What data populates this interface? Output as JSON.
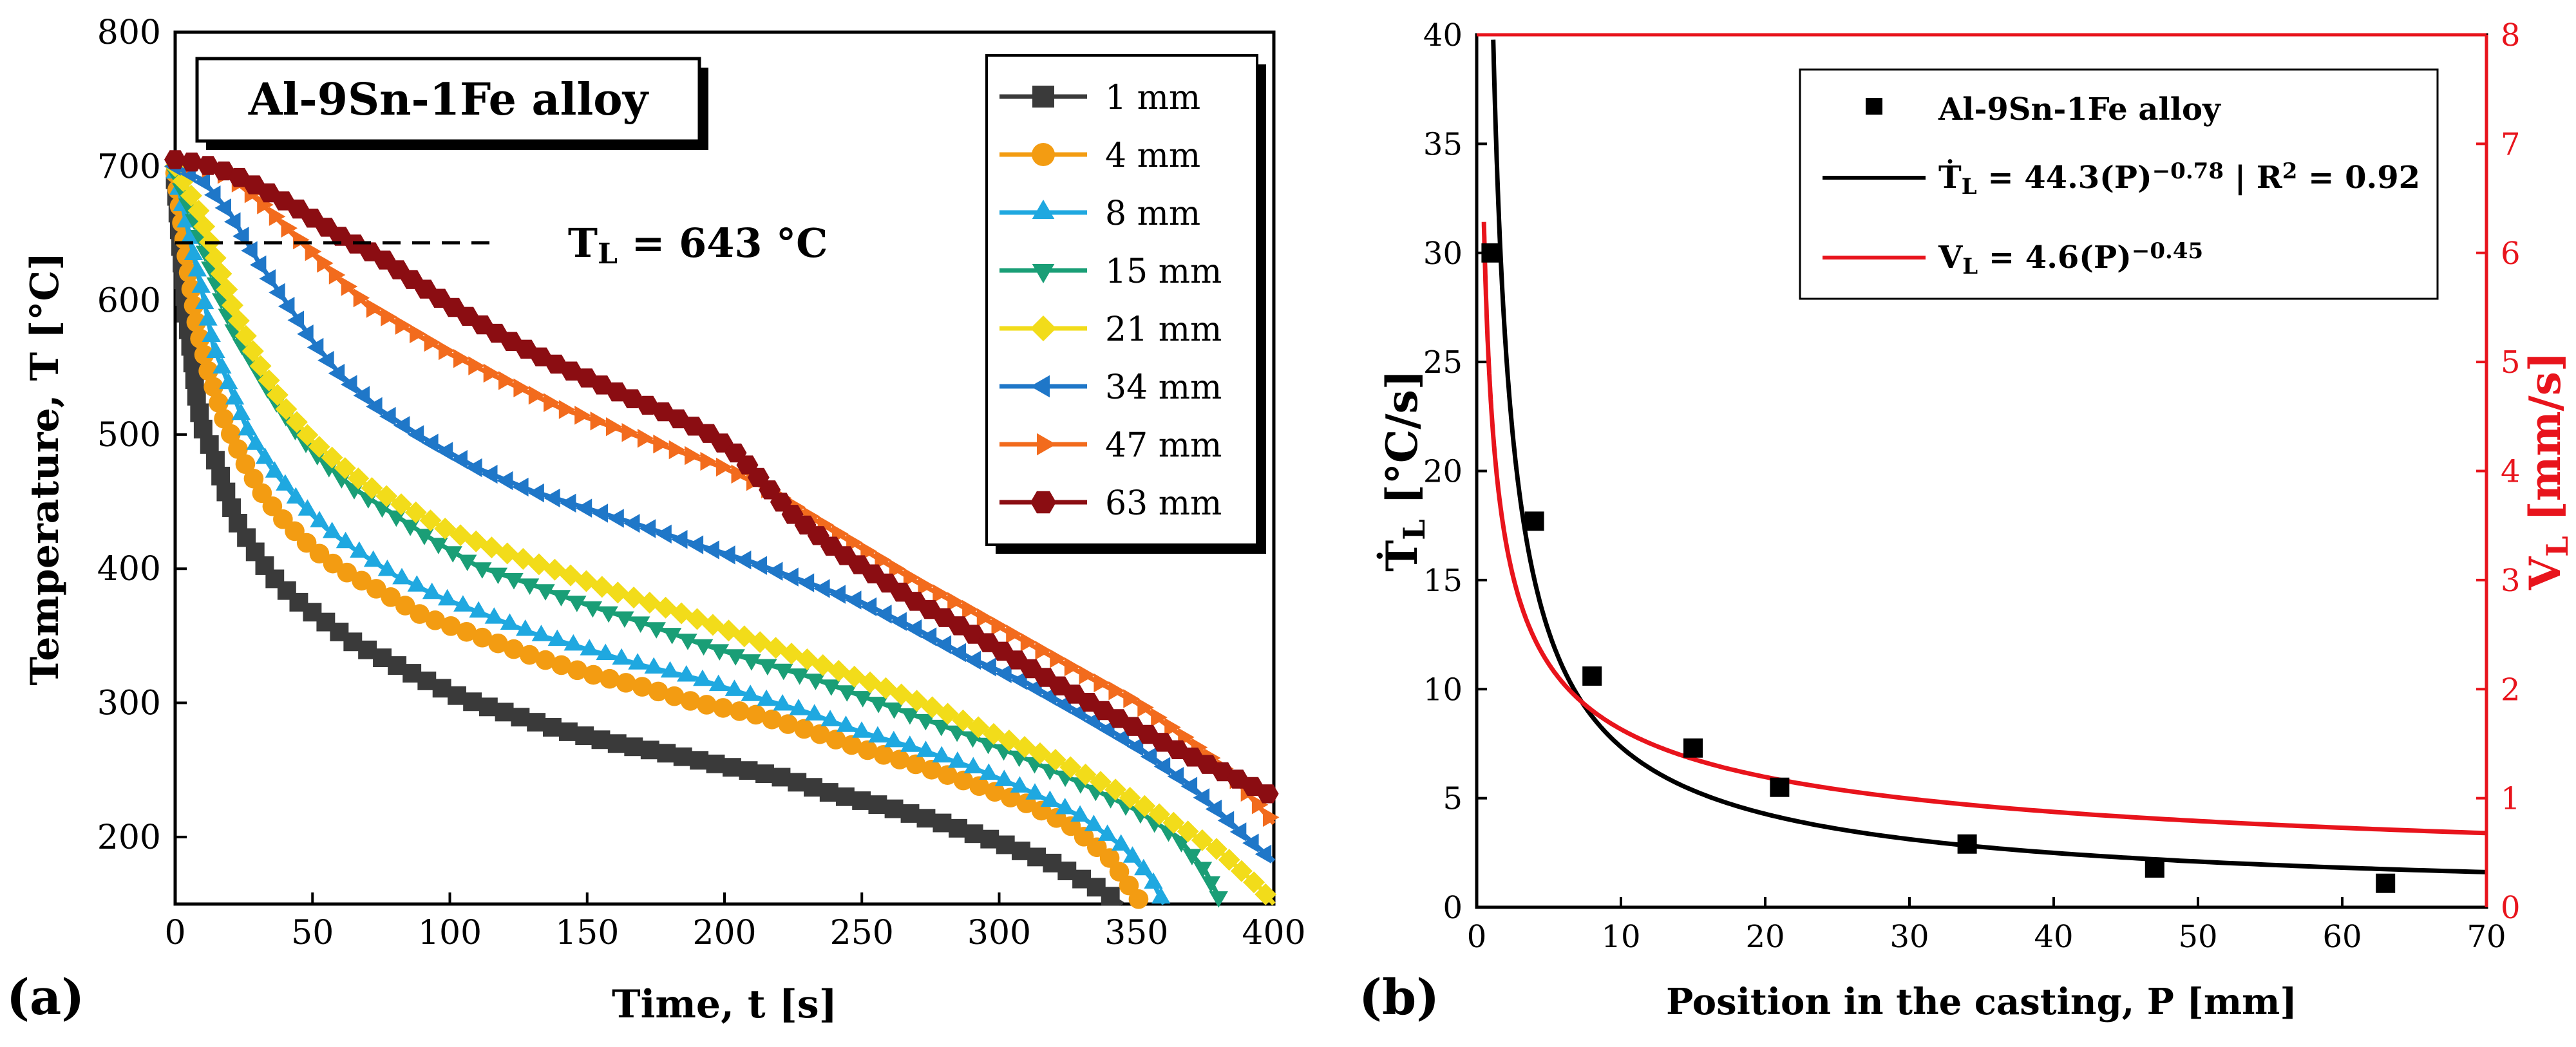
{
  "panel_a": {
    "label": "(a)",
    "chart_data": {
      "type": "line",
      "title": "Al-9Sn-1Fe alloy",
      "xlabel": "Time, t [s]",
      "ylabel": "Temperature, T [°C]",
      "xlim": [
        0,
        400
      ],
      "ylim": [
        150,
        800
      ],
      "xticks": [
        0,
        50,
        100,
        150,
        200,
        250,
        300,
        350,
        400
      ],
      "yticks": [
        200,
        300,
        400,
        500,
        600,
        700,
        800
      ],
      "annotation": {
        "text": "T",
        "sub": "L",
        "rest": " = 643 °C",
        "value": 643
      },
      "series": [
        {
          "name": "1 mm",
          "color": "#3a3a3a",
          "marker": "square",
          "points": [
            [
              0,
              690
            ],
            [
              2,
              640
            ],
            [
              4,
              590
            ],
            [
              6,
              560
            ],
            [
              8,
              525
            ],
            [
              10,
              505
            ],
            [
              14,
              485
            ],
            [
              18,
              460
            ],
            [
              22,
              437
            ],
            [
              28,
              416
            ],
            [
              35,
              395
            ],
            [
              45,
              375
            ],
            [
              55,
              360
            ],
            [
              65,
              345
            ],
            [
              75,
              334
            ],
            [
              90,
              318
            ],
            [
              105,
              303
            ],
            [
              120,
              293
            ],
            [
              140,
              280
            ],
            [
              160,
              270
            ],
            [
              180,
              262
            ],
            [
              200,
              253
            ],
            [
              220,
              245
            ],
            [
              240,
              232
            ],
            [
              260,
              222
            ],
            [
              280,
              210
            ],
            [
              300,
              196
            ],
            [
              320,
              180
            ],
            [
              335,
              163
            ],
            [
              345,
              150
            ]
          ]
        },
        {
          "name": "4 mm",
          "color": "#f39c12",
          "marker": "circle",
          "points": [
            [
              0,
              695
            ],
            [
              5,
              620
            ],
            [
              8,
              580
            ],
            [
              12,
              548
            ],
            [
              18,
              510
            ],
            [
              25,
              480
            ],
            [
              32,
              455
            ],
            [
              40,
              435
            ],
            [
              50,
              415
            ],
            [
              60,
              400
            ],
            [
              75,
              383
            ],
            [
              90,
              365
            ],
            [
              110,
              350
            ],
            [
              130,
              335
            ],
            [
              150,
              322
            ],
            [
              170,
              312
            ],
            [
              190,
              300
            ],
            [
              210,
              292
            ],
            [
              230,
              280
            ],
            [
              250,
              266
            ],
            [
              270,
              254
            ],
            [
              290,
              240
            ],
            [
              310,
              225
            ],
            [
              325,
              210
            ],
            [
              340,
              185
            ],
            [
              352,
              150
            ]
          ]
        },
        {
          "name": "8 mm",
          "color": "#1fa8e0",
          "marker": "triangle-up",
          "points": [
            [
              0,
              695
            ],
            [
              6,
              640
            ],
            [
              10,
              605
            ],
            [
              14,
              565
            ],
            [
              20,
              535
            ],
            [
              27,
              500
            ],
            [
              35,
              475
            ],
            [
              45,
              450
            ],
            [
              55,
              430
            ],
            [
              65,
              415
            ],
            [
              80,
              395
            ],
            [
              95,
              380
            ],
            [
              110,
              368
            ],
            [
              130,
              352
            ],
            [
              150,
              340
            ],
            [
              170,
              328
            ],
            [
              190,
              318
            ],
            [
              210,
              305
            ],
            [
              230,
              293
            ],
            [
              250,
              278
            ],
            [
              270,
              266
            ],
            [
              290,
              252
            ],
            [
              310,
              235
            ],
            [
              330,
              215
            ],
            [
              345,
              193
            ],
            [
              355,
              170
            ],
            [
              360,
              150
            ]
          ]
        },
        {
          "name": "15 mm",
          "color": "#1a9e76",
          "marker": "triangle-down",
          "points": [
            [
              0,
              695
            ],
            [
              7,
              660
            ],
            [
              12,
              630
            ],
            [
              17,
              600
            ],
            [
              22,
              575
            ],
            [
              28,
              555
            ],
            [
              35,
              530
            ],
            [
              45,
              500
            ],
            [
              55,
              478
            ],
            [
              65,
              460
            ],
            [
              80,
              440
            ],
            [
              95,
              420
            ],
            [
              110,
              402
            ],
            [
              130,
              388
            ],
            [
              150,
              373
            ],
            [
              170,
              360
            ],
            [
              190,
              345
            ],
            [
              210,
              332
            ],
            [
              230,
              320
            ],
            [
              250,
              305
            ],
            [
              270,
              290
            ],
            [
              290,
              275
            ],
            [
              310,
              258
            ],
            [
              330,
              240
            ],
            [
              350,
              220
            ],
            [
              365,
              200
            ],
            [
              375,
              175
            ],
            [
              380,
              155
            ]
          ]
        },
        {
          "name": "21 mm",
          "color": "#f2dc1a",
          "marker": "diamond",
          "points": [
            [
              0,
              700
            ],
            [
              8,
              670
            ],
            [
              15,
              630
            ],
            [
              22,
              590
            ],
            [
              30,
              555
            ],
            [
              40,
              520
            ],
            [
              50,
              495
            ],
            [
              60,
              478
            ],
            [
              70,
              462
            ],
            [
              85,
              445
            ],
            [
              100,
              428
            ],
            [
              120,
              412
            ],
            [
              140,
              398
            ],
            [
              160,
              383
            ],
            [
              180,
              370
            ],
            [
              200,
              355
            ],
            [
              220,
              340
            ],
            [
              240,
              325
            ],
            [
              260,
              310
            ],
            [
              280,
              293
            ],
            [
              300,
              275
            ],
            [
              320,
              258
            ],
            [
              340,
              238
            ],
            [
              360,
              215
            ],
            [
              380,
              190
            ],
            [
              395,
              162
            ],
            [
              400,
              150
            ]
          ]
        },
        {
          "name": "34 mm",
          "color": "#1f77c8",
          "marker": "triangle-left",
          "points": [
            [
              0,
              700
            ],
            [
              10,
              690
            ],
            [
              20,
              665
            ],
            [
              30,
              630
            ],
            [
              40,
              600
            ],
            [
              50,
              570
            ],
            [
              60,
              545
            ],
            [
              75,
              518
            ],
            [
              90,
              498
            ],
            [
              110,
              475
            ],
            [
              130,
              458
            ],
            [
              150,
              445
            ],
            [
              170,
              432
            ],
            [
              190,
              418
            ],
            [
              210,
              405
            ],
            [
              230,
              390
            ],
            [
              250,
              375
            ],
            [
              270,
              355
            ],
            [
              290,
              333
            ],
            [
              310,
              315
            ],
            [
              330,
              292
            ],
            [
              350,
              268
            ],
            [
              370,
              238
            ],
            [
              390,
              200
            ],
            [
              400,
              182
            ]
          ]
        },
        {
          "name": "47 mm",
          "color": "#f26b1d",
          "marker": "triangle-right",
          "points": [
            [
              0,
              705
            ],
            [
              10,
              700
            ],
            [
              20,
              692
            ],
            [
              30,
              675
            ],
            [
              40,
              655
            ],
            [
              50,
              635
            ],
            [
              60,
              615
            ],
            [
              70,
              596
            ],
            [
              85,
              578
            ],
            [
              100,
              560
            ],
            [
              120,
              540
            ],
            [
              140,
              520
            ],
            [
              160,
              505
            ],
            [
              180,
              490
            ],
            [
              200,
              475
            ],
            [
              215,
              460
            ],
            [
              230,
              440
            ],
            [
              250,
              415
            ],
            [
              270,
              390
            ],
            [
              290,
              368
            ],
            [
              310,
              345
            ],
            [
              330,
              322
            ],
            [
              350,
              300
            ],
            [
              370,
              270
            ],
            [
              385,
              245
            ],
            [
              400,
              210
            ]
          ]
        },
        {
          "name": "63 mm",
          "color": "#8b0d12",
          "marker": "hexagon",
          "points": [
            [
              0,
              705
            ],
            [
              10,
              702
            ],
            [
              20,
              695
            ],
            [
              30,
              685
            ],
            [
              45,
              668
            ],
            [
              60,
              648
            ],
            [
              75,
              632
            ],
            [
              90,
              610
            ],
            [
              105,
              590
            ],
            [
              120,
              572
            ],
            [
              135,
              556
            ],
            [
              150,
              542
            ],
            [
              165,
              528
            ],
            [
              180,
              515
            ],
            [
              195,
              500
            ],
            [
              205,
              485
            ],
            [
              215,
              462
            ],
            [
              225,
              440
            ],
            [
              240,
              415
            ],
            [
              255,
              395
            ],
            [
              270,
              375
            ],
            [
              285,
              358
            ],
            [
              300,
              340
            ],
            [
              320,
              315
            ],
            [
              340,
              292
            ],
            [
              360,
              270
            ],
            [
              380,
              250
            ],
            [
              400,
              230
            ]
          ]
        }
      ]
    }
  },
  "panel_b": {
    "label": "(b)",
    "chart_data": {
      "type": "scatter",
      "xlabel": "Position in the casting, P [mm]",
      "ylabel_left": {
        "main": "Ṫ",
        "sub": "L",
        "rest": " [°C/s]"
      },
      "ylabel_right": {
        "main": "V",
        "sub": "L",
        "rest": " [mm/s]"
      },
      "xlim": [
        0,
        70
      ],
      "ylim_left": [
        0,
        40
      ],
      "ylim_right": [
        0,
        8
      ],
      "xticks": [
        0,
        10,
        20,
        30,
        40,
        50,
        60,
        70
      ],
      "yticks_left": [
        0,
        5,
        10,
        15,
        20,
        25,
        30,
        35,
        40
      ],
      "yticks_right": [
        0,
        1,
        2,
        3,
        4,
        5,
        6,
        7,
        8
      ],
      "scatter": {
        "name": "Al-9Sn-1Fe alloy",
        "color": "#000000",
        "points": [
          [
            1,
            30.0
          ],
          [
            4,
            17.7
          ],
          [
            8,
            10.6
          ],
          [
            15,
            7.3
          ],
          [
            21,
            5.5
          ],
          [
            34,
            2.9
          ],
          [
            47,
            1.8
          ],
          [
            63,
            1.1
          ]
        ]
      },
      "fits": [
        {
          "name": "Ṫ_L = 44.3(P)^-0.78 | R² = 0.92",
          "axis": "left",
          "color": "#000000",
          "coef": 44.3,
          "exp": -0.78,
          "x_from": 1,
          "x_to": 70,
          "legend": {
            "lhs": "Ṫ",
            "sub": "L",
            "mid": " = 44.3(P)",
            "sup": "−0.78",
            "sep": " | R",
            "sup2": "2",
            "tail": " = 0.92"
          }
        },
        {
          "name": "V_L = 4.6(P)^-0.45",
          "axis": "right",
          "color": "#e8141c",
          "coef": 4.6,
          "exp": -0.45,
          "x_from": 0.5,
          "x_to": 70,
          "legend": {
            "lhs": "V",
            "sub": "L",
            "mid": " = 4.6(P)",
            "sup": "−0.45"
          }
        }
      ]
    }
  },
  "colors": {
    "axis": "#000000",
    "right_axis": "#e8141c"
  }
}
